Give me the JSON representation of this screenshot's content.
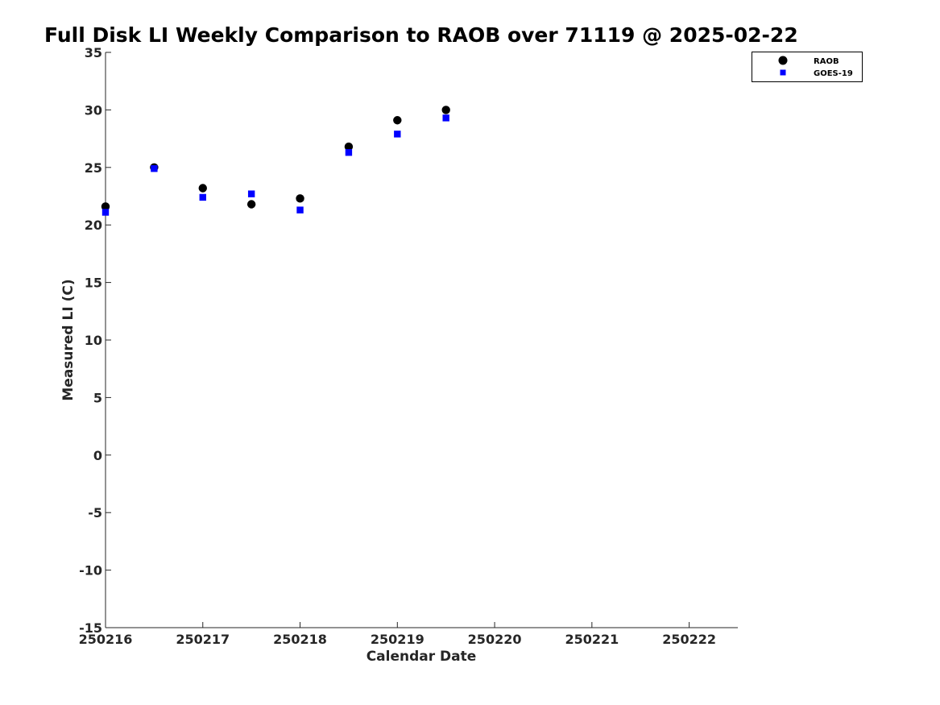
{
  "chart_data": {
    "type": "scatter",
    "title": "Full Disk LI Weekly Comparison to RAOB over 71119 @ 2025-02-22",
    "xlabel": "Calendar Date",
    "ylabel": "Measured LI (C)",
    "x_tick_labels": [
      "250216",
      "250217",
      "250218",
      "250219",
      "250220",
      "250221",
      "250222"
    ],
    "y_ticks": [
      -15,
      -10,
      -5,
      0,
      5,
      10,
      15,
      20,
      25,
      30,
      35
    ],
    "xlim": [
      0,
      6.5
    ],
    "ylim": [
      -15,
      35
    ],
    "grid": false,
    "legend_position": "top-right",
    "series": [
      {
        "name": "RAOB",
        "marker": "circle",
        "color": "#000000",
        "x": [
          0,
          0.5,
          1,
          1.5,
          2,
          2.5,
          3,
          3.5
        ],
        "y": [
          21.6,
          25.0,
          23.2,
          21.8,
          22.3,
          26.8,
          29.1,
          30.0
        ]
      },
      {
        "name": "GOES-19",
        "marker": "square",
        "color": "#0000ff",
        "x": [
          0,
          0.5,
          1,
          1.5,
          2,
          2.5,
          3,
          3.5
        ],
        "y": [
          21.1,
          24.9,
          22.4,
          22.7,
          21.3,
          26.3,
          27.9,
          29.3
        ]
      }
    ]
  }
}
